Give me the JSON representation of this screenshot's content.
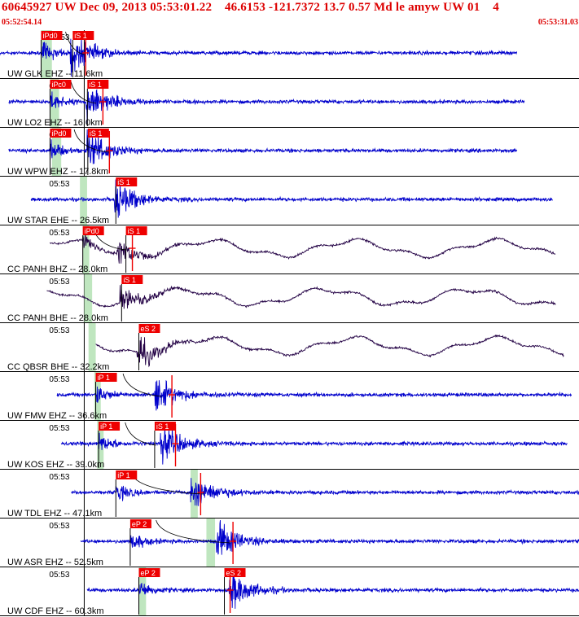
{
  "header": {
    "title": "60645927 UW Dec 09, 2013 05:53:01.22    46.6153 -121.7372 13.7 0.57 Md le amyw UW 01    4",
    "start_time": "05:52:54.14",
    "end_time": "05:53:31.03"
  },
  "colors": {
    "header_text": "#dd0000",
    "trace_short_period": "#0000cc",
    "trace_broadband": "#220044",
    "pick_box": "#ee0000",
    "pick_text": "#ffffff",
    "window": "#bfe6bf",
    "travel_curve": "#000000"
  },
  "chart_data": {
    "type": "seismogram",
    "title": "60645927 UW Dec 09, 2013 05:53:01.22    46.6153 -121.7372 13.7 0.57 Md le amyw UW 01    4",
    "time_start": "05:52:54.14",
    "time_end": "05:53:31.03",
    "minute_tick_label": "05:53",
    "minute_tick_time": "05:53:00.00",
    "grid": true,
    "traces": [
      {
        "label": "UW GLK EHZ -- 11.6km",
        "style": "sp",
        "trace_start": "05:52:54.12",
        "trace_end": "05:53:30.12",
        "p_time": "05:52:57.10",
        "s_time": "05:52:59.15",
        "window": [
          "05:52:57.00",
          "05:52:57.75"
        ],
        "curve": [
          "05:52:58.70",
          "05:53:00.00"
        ],
        "marker_time": "05:53:00.10",
        "picks": [
          {
            "label": "iPd0",
            "time": "05:52:57.00"
          },
          {
            "label": "iS 1",
            "time": "05:52:59.20"
          }
        ]
      },
      {
        "label": "UW LO2 EHZ -- 16.0km",
        "style": "sp",
        "trace_start": "05:52:54.75",
        "trace_end": "05:53:30.63",
        "p_time": "05:52:57.62",
        "s_time": "05:53:00.22",
        "window": [
          "05:52:57.62",
          "05:52:58.25"
        ],
        "curve": [
          "05:52:59.05",
          "05:53:00.82"
        ],
        "marker_time": "05:53:01.30",
        "picks": [
          {
            "label": "iPc0",
            "time": "05:52:57.62"
          },
          {
            "label": "iS 1",
            "time": "05:53:00.22"
          }
        ]
      },
      {
        "label": "UW WPW EHZ -- 17.8km",
        "style": "sp",
        "trace_start": "05:52:54.75",
        "trace_end": "05:53:30.12",
        "p_time": "05:52:57.62",
        "s_time": "05:53:00.30",
        "window": [
          "05:52:57.75",
          "05:52:58.40"
        ],
        "curve": [
          "05:52:59.30",
          "05:53:01.70"
        ],
        "marker_time": "05:53:01.75",
        "picks": [
          {
            "label": "iPd0",
            "time": "05:52:57.62"
          },
          {
            "label": "iS 1",
            "time": "05:53:00.25"
          }
        ]
      },
      {
        "label": "UW STAR EHE -- 26.5km",
        "style": "sp",
        "trace_start": "05:52:56.30",
        "trace_end": "05:53:32.60",
        "p_time": null,
        "s_time": "05:53:02.20",
        "window": [
          "05:52:59.70",
          "05:53:00.20"
        ],
        "curve": null,
        "marker_time": null,
        "picks": [
          {
            "label": "iS 1",
            "time": "05:53:02.20"
          }
        ]
      },
      {
        "label": "CC PANH BHZ -- 28.0km",
        "style": "bb",
        "trace_start": "05:52:57.60",
        "trace_end": "05:53:32.80",
        "p_time": "05:52:59.90",
        "s_time": "05:53:02.40",
        "window": [
          "05:52:59.90",
          "05:53:00.35"
        ],
        "curve": [
          "05:53:00.60",
          "05:53:02.90"
        ],
        "marker_time": "05:53:03.35",
        "picks": [
          {
            "label": "iPd0",
            "time": "05:52:59.90"
          },
          {
            "label": "iS 1",
            "time": "05:53:02.90"
          }
        ]
      },
      {
        "label": "CC PANH BHE -- 28.0km",
        "style": "bb",
        "trace_start": "05:52:57.40",
        "trace_end": "05:53:32.80",
        "p_time": null,
        "s_time": "05:53:02.60",
        "window": [
          "05:53:00.00",
          "05:53:00.55"
        ],
        "curve": null,
        "marker_time": null,
        "picks": [
          {
            "label": "iS 1",
            "time": "05:53:02.60"
          }
        ]
      },
      {
        "label": "CC QBSR BHE -- 32.2km",
        "style": "bb",
        "trace_start": "05:53:00.80",
        "trace_end": "05:53:33.40",
        "p_time": null,
        "s_time": "05:53:03.80",
        "window": [
          "05:53:00.30",
          "05:53:00.80"
        ],
        "curve": null,
        "marker_time": null,
        "picks": [
          {
            "label": "eS 2",
            "time": "05:53:03.80"
          }
        ]
      },
      {
        "label": "UW FMW EHZ -- 36.6km",
        "style": "sp",
        "trace_start": "05:52:58.10",
        "trace_end": "05:53:33.90",
        "p_time": "05:53:00.80",
        "s_time": "05:53:05.00",
        "window": [
          "05:53:00.70",
          "05:53:01.15"
        ],
        "curve": [
          "05:53:02.70",
          "05:53:05.40"
        ],
        "marker_time": "05:53:06.10",
        "picks": [
          {
            "label": "iP 1",
            "time": "05:53:00.80"
          }
        ]
      },
      {
        "label": "UW KOS EHZ -- 39.0km",
        "style": "sp",
        "trace_start": "05:52:58.40",
        "trace_end": "05:53:33.60",
        "p_time": "05:53:01.00",
        "s_time": "05:53:05.40",
        "window": [
          "05:53:00.90",
          "05:53:01.35"
        ],
        "curve": [
          "05:53:02.85",
          "05:53:05.00"
        ],
        "marker_time": "05:53:06.35",
        "picks": [
          {
            "label": "iP 1",
            "time": "05:53:01.00"
          },
          {
            "label": "iS 1",
            "time": "05:53:04.90"
          }
        ]
      },
      {
        "label": "UW TDL EHZ -- 47.1km",
        "style": "sp",
        "trace_start": "05:52:59.10",
        "trace_end": "05:53:34.60",
        "p_time": "05:53:02.20",
        "s_time": "05:53:07.50",
        "window": [
          "05:53:07.40",
          "05:53:07.90"
        ],
        "curve": [
          "05:53:03.20",
          "05:53:08.30"
        ],
        "marker_time": "05:53:08.10",
        "picks": [
          {
            "label": "iP 1",
            "time": "05:53:02.20"
          }
        ]
      },
      {
        "label": "UW ASR EHZ -- 52.5km",
        "style": "sp",
        "trace_start": "05:52:59.75",
        "trace_end": "05:53:36.25",
        "p_time": "05:53:03.20",
        "s_time": "05:53:09.30",
        "window": [
          "05:53:08.50",
          "05:53:09.10"
        ],
        "curve": [
          "05:53:05.00",
          "05:53:10.20"
        ],
        "marker_time": "05:53:10.35",
        "picks": [
          {
            "label": "eP 2",
            "time": "05:53:03.20"
          }
        ]
      },
      {
        "label": "UW CDF EHZ -- 60.3km",
        "style": "sp",
        "trace_start": "05:53:00.20",
        "trace_end": "05:53:34.60",
        "p_time": "05:53:03.80",
        "s_time": "05:53:10.20",
        "window": [
          "05:53:03.80",
          "05:53:04.30"
        ],
        "curve": null,
        "marker_time": "05:53:10.15",
        "picks": [
          {
            "label": "eP 2",
            "time": "05:53:03.80"
          },
          {
            "label": "eS 2",
            "time": "05:53:09.75"
          }
        ]
      }
    ]
  }
}
